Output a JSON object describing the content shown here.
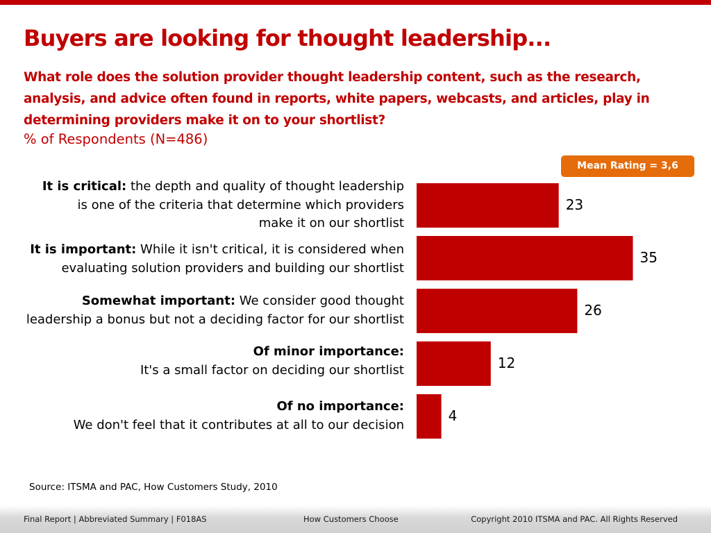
{
  "title": "Buyers are looking for thought leadership...",
  "question": "What role does the solution provider thought leadership content, such as the research, analysis, and advice often found in reports, white papers, webcasts, and articles, play in determining providers make it on to your shortlist?",
  "respondents": "% of Respondents (N=486)",
  "mean_rating": "Mean Rating = 3,6",
  "source": "Source: ITSMA and PAC, How Customers Study, 2010",
  "footer": {
    "left": "Final Report | Abbreviated Summary | F018AS",
    "center": "How Customers Choose",
    "right": "Copyright 2010 ITSMA and PAC. All Rights Reserved"
  },
  "rows": [
    {
      "bold": "It is critical:",
      "line1_rest": " the depth and quality of thought leadership",
      "line2": "is one of the criteria that determine which providers",
      "line3": "make it on our shortlist"
    },
    {
      "bold": "It is important:",
      "line1_rest": " While it isn't critical, it is considered when",
      "line2": "evaluating solution providers and building our shortlist"
    },
    {
      "bold": "Somewhat important:",
      "line1_rest": " We consider good thought",
      "line2": "leadership a bonus but not a deciding factor for our shortlist"
    },
    {
      "bold": "Of minor importance:",
      "line1_rest": "",
      "line2": "It's a small factor on deciding our shortlist"
    },
    {
      "bold": "Of no importance:",
      "line1_rest": "",
      "line2": "We don't feel that it contributes at all to our decision"
    }
  ],
  "chart_data": {
    "type": "bar",
    "orientation": "horizontal",
    "categories": [
      "It is critical",
      "It is important",
      "Somewhat important",
      "Of minor importance",
      "Of no importance"
    ],
    "values": [
      23,
      35,
      26,
      12,
      4
    ],
    "xlabel": "",
    "ylabel": "",
    "color": "#c00000"
  },
  "colors": {
    "accent": "#c00000",
    "badge": "#e46c0a"
  }
}
